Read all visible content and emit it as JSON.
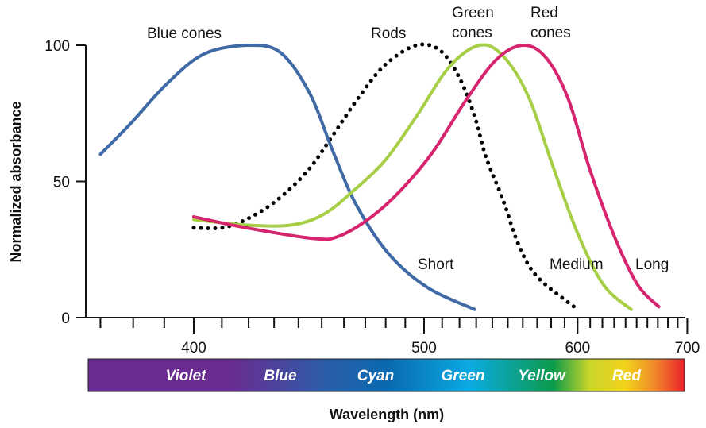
{
  "chart_data": {
    "type": "line",
    "xlabel": "Wavelength (nm)",
    "ylabel": "Normalized absorbance",
    "x_scale": "reciprocal (1/wavelength)",
    "xlim": [
      368,
      705
    ],
    "ylim": [
      0,
      100
    ],
    "x_ticks": [
      "400",
      "500",
      "600",
      "700"
    ],
    "x_tick_values": [
      400,
      500,
      600,
      700
    ],
    "x_minor_tick_step": 10,
    "y_ticks": [
      "0",
      "50",
      "100"
    ],
    "y_tick_values": [
      0,
      50,
      100
    ],
    "grid": false,
    "series": [
      {
        "name": "Blue cones",
        "end_label": "Short",
        "color": "#3f6aa6",
        "style": "solid",
        "x": [
          370,
          379,
          391,
          404,
          421,
          433,
          445,
          455,
          466,
          482,
          502,
          529
        ],
        "y": [
          60,
          71,
          86,
          97,
          100,
          97,
          82,
          61,
          41,
          23,
          11,
          3
        ]
      },
      {
        "name": "Rods",
        "end_label": "",
        "color": "#000000",
        "style": "dotted",
        "x": [
          400,
          410,
          419,
          431,
          444,
          455,
          467,
          480,
          496,
          509,
          520,
          529,
          536,
          547,
          557,
          570,
          600
        ],
        "y": [
          33,
          33,
          36,
          43,
          54,
          67,
          81,
          93,
          100,
          98,
          88,
          74,
          59,
          43,
          27,
          15,
          3
        ]
      },
      {
        "name": "Green cones",
        "end_label": "Medium",
        "color": "#a6cf47",
        "style": "solid",
        "x": [
          400,
          419,
          437,
          451,
          465,
          480,
          496,
          514,
          532,
          547,
          564,
          581,
          600,
          621,
          645
        ],
        "y": [
          36,
          34,
          34,
          38,
          47,
          58,
          74,
          92,
          100,
          96,
          81,
          56,
          31,
          12,
          3
        ]
      },
      {
        "name": "Red cones",
        "end_label": "Long",
        "color": "#d6246e",
        "style": "solid",
        "x": [
          400,
          419,
          447,
          458,
          473,
          488,
          505,
          524,
          543,
          561,
          577,
          593,
          610,
          631,
          651,
          671
        ],
        "y": [
          37,
          33,
          29,
          30,
          37,
          47,
          61,
          80,
          95,
          100,
          95,
          80,
          54,
          29,
          12,
          4
        ]
      }
    ],
    "curve_labels": {
      "blue": "Blue cones",
      "rods": "Rods",
      "green_1": "Green",
      "green_2": "cones",
      "red_1": "Red",
      "red_2": "cones",
      "short": "Short",
      "medium": "Medium",
      "long": "Long"
    },
    "spectrum": {
      "bands": [
        "Violet",
        "Blue",
        "Cyan",
        "Green",
        "Yellow",
        "Red"
      ],
      "colors": [
        "#6a2c91",
        "#6a2c91",
        "#2b5ea8",
        "#0a69b0",
        "#0aaae2",
        "#0c9a4a",
        "#c9d52a",
        "#f2d41c",
        "#f0892a",
        "#e8202a"
      ]
    }
  }
}
